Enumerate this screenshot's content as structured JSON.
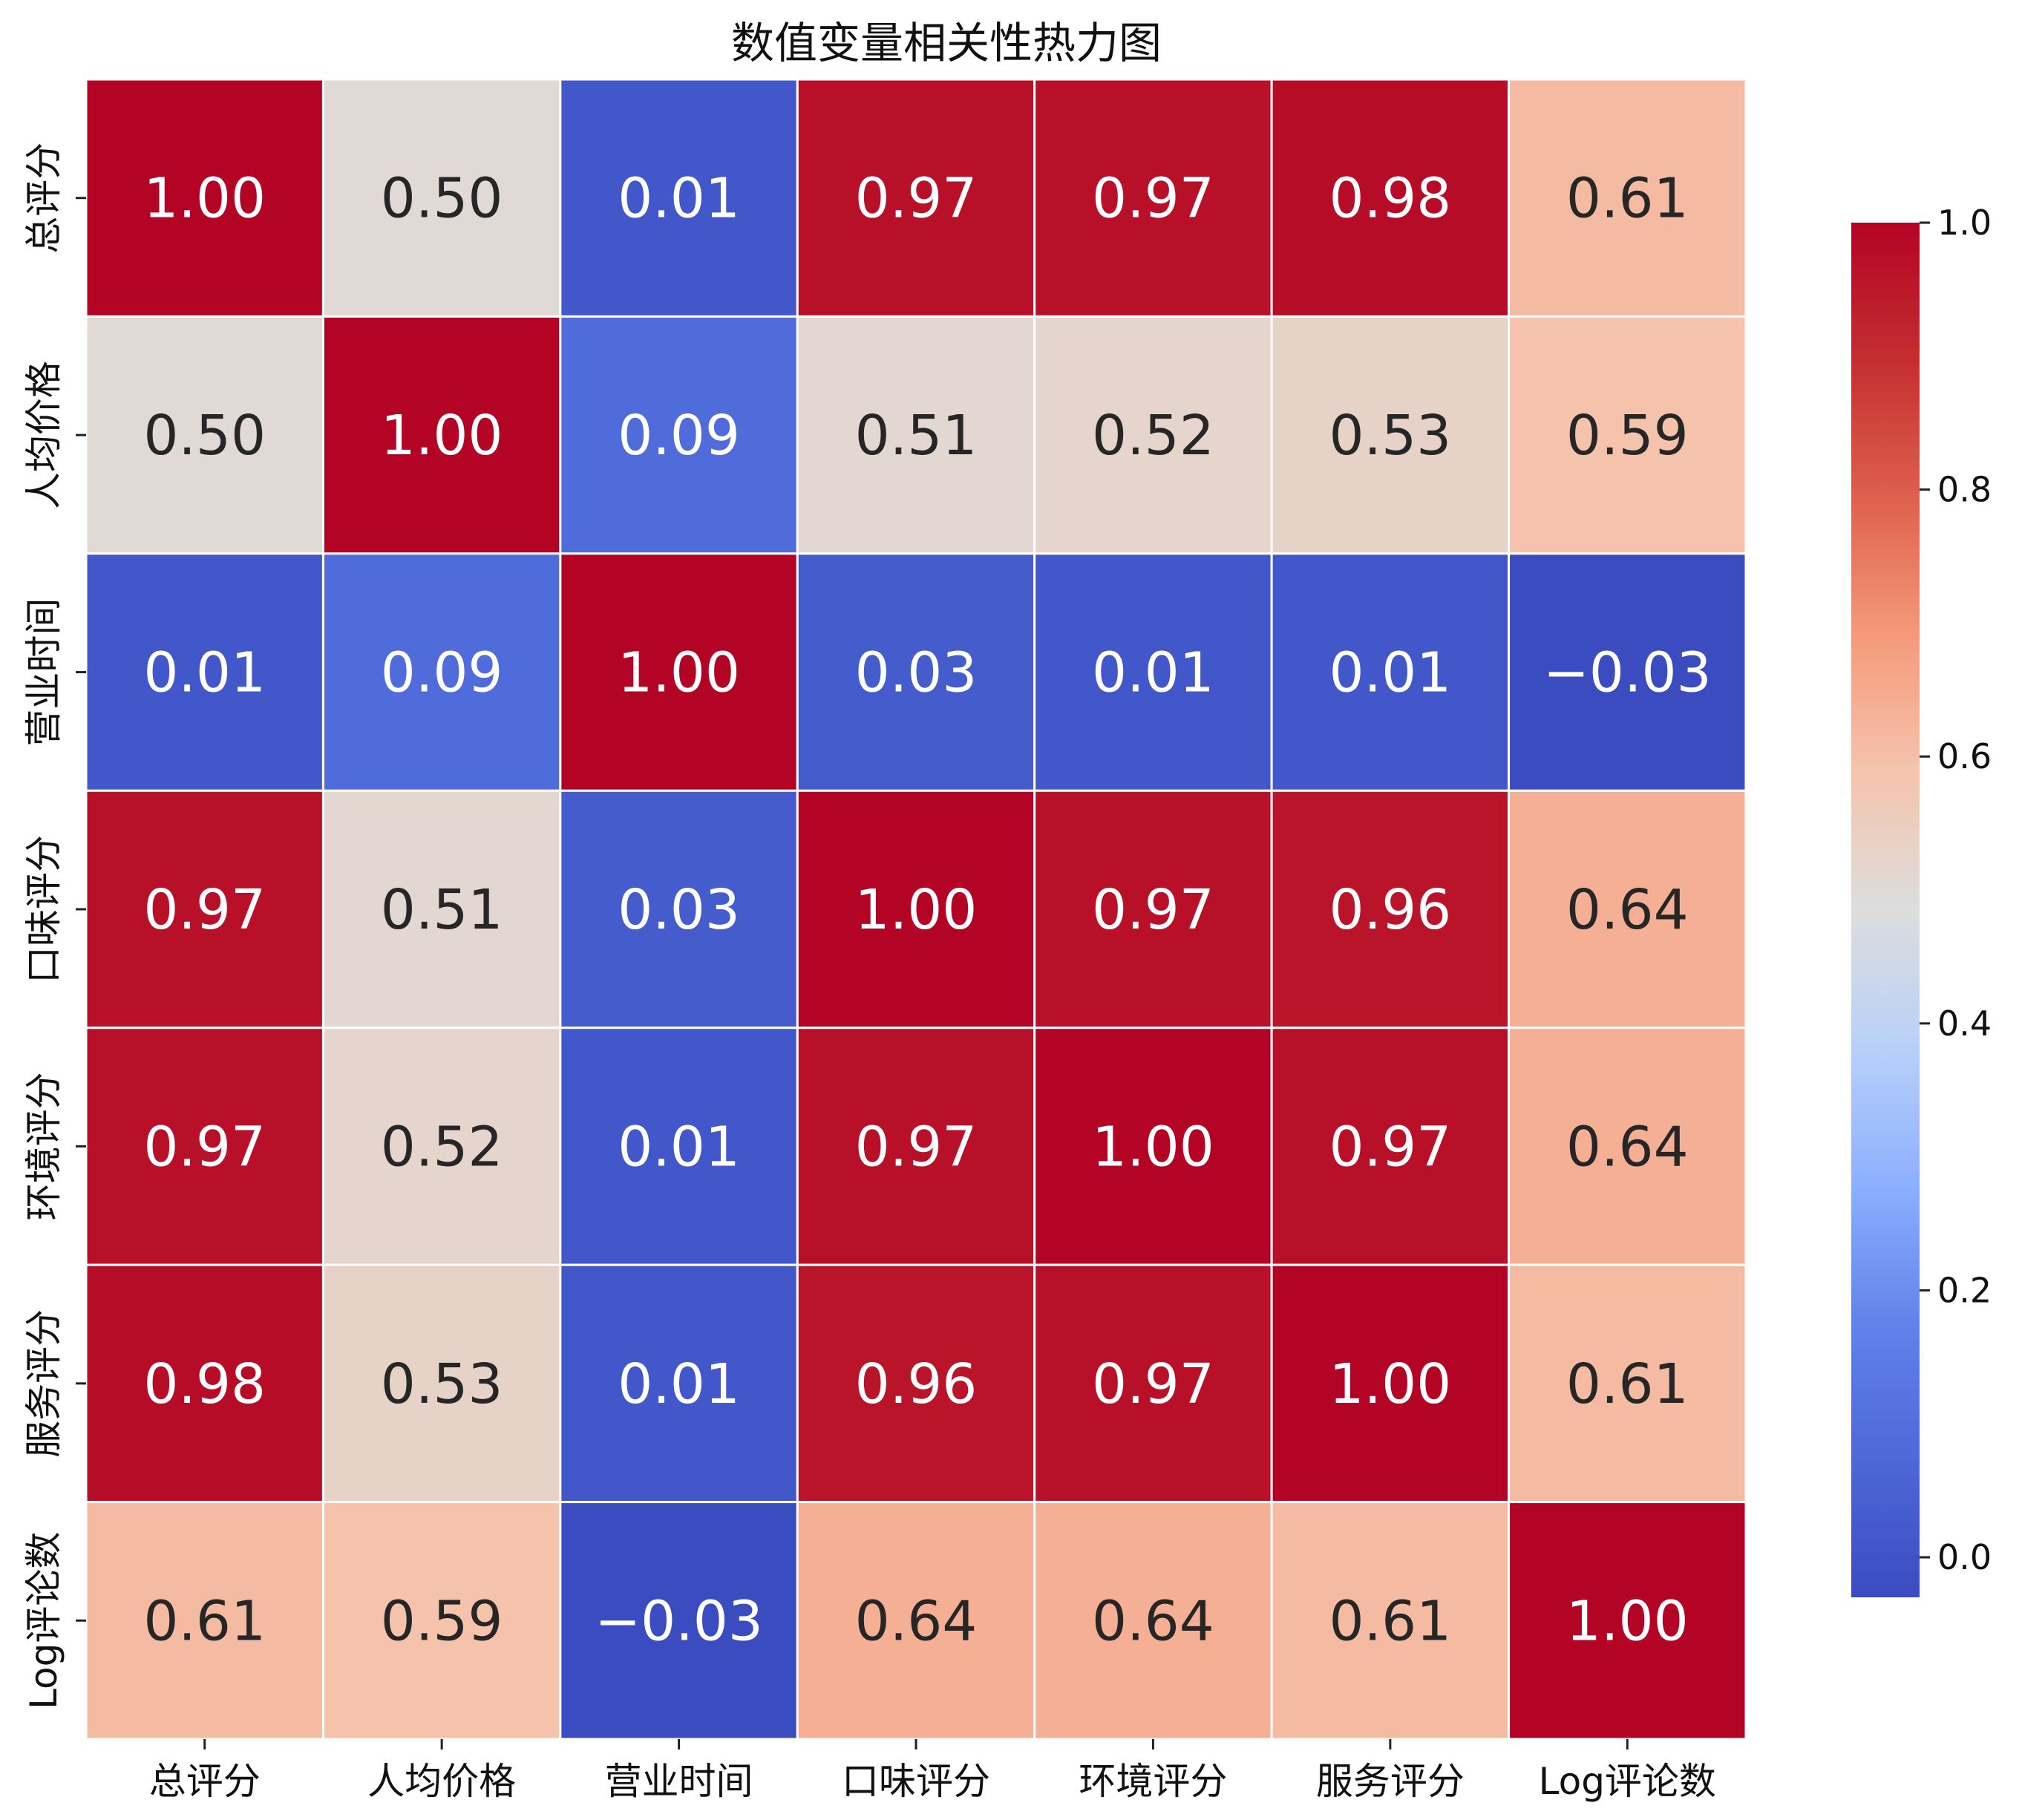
{
  "chart_data": {
    "type": "heatmap",
    "title": "数值变量相关性热力图",
    "xlabel": "",
    "ylabel": "",
    "categories": [
      "总评分",
      "人均价格",
      "营业时间",
      "口味评分",
      "环境评分",
      "服务评分",
      "Log评论数"
    ],
    "matrix": [
      [
        1.0,
        0.5,
        0.01,
        0.97,
        0.97,
        0.98,
        0.61
      ],
      [
        0.5,
        1.0,
        0.09,
        0.51,
        0.52,
        0.53,
        0.59
      ],
      [
        0.01,
        0.09,
        1.0,
        0.03,
        0.01,
        0.01,
        -0.03
      ],
      [
        0.97,
        0.51,
        0.03,
        1.0,
        0.97,
        0.96,
        0.64
      ],
      [
        0.97,
        0.52,
        0.01,
        0.97,
        1.0,
        0.97,
        0.64
      ],
      [
        0.98,
        0.53,
        0.01,
        0.96,
        0.97,
        1.0,
        0.61
      ],
      [
        0.61,
        0.59,
        -0.03,
        0.64,
        0.64,
        0.61,
        1.0
      ]
    ],
    "cell_labels": [
      [
        "1.00",
        "0.50",
        "0.01",
        "0.97",
        "0.97",
        "0.98",
        "0.61"
      ],
      [
        "0.50",
        "1.00",
        "0.09",
        "0.51",
        "0.52",
        "0.53",
        "0.59"
      ],
      [
        "0.01",
        "0.09",
        "1.00",
        "0.03",
        "0.01",
        "0.01",
        "−0.03"
      ],
      [
        "0.97",
        "0.51",
        "0.03",
        "1.00",
        "0.97",
        "0.96",
        "0.64"
      ],
      [
        "0.97",
        "0.52",
        "0.01",
        "0.97",
        "1.00",
        "0.97",
        "0.64"
      ],
      [
        "0.98",
        "0.53",
        "0.01",
        "0.96",
        "0.97",
        "1.00",
        "0.61"
      ],
      [
        "0.61",
        "0.59",
        "−0.03",
        "0.64",
        "0.64",
        "0.61",
        "1.00"
      ]
    ],
    "colorbar": {
      "vmin": -0.03,
      "vmax": 1.0,
      "ticks": [
        0.0,
        0.2,
        0.4,
        0.6,
        0.8,
        1.0
      ],
      "tick_labels": [
        "0.0",
        "0.2",
        "0.4",
        "0.6",
        "0.8",
        "1.0"
      ],
      "colormap": "coolwarm"
    },
    "colors": {
      "cell_border": "#ffffff",
      "dark_text": "#262626",
      "light_text": "#ffffff"
    }
  }
}
